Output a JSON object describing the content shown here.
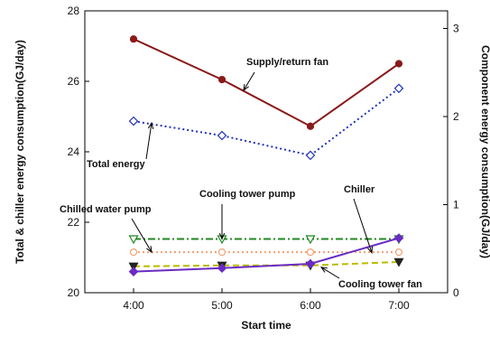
{
  "chart_data": {
    "type": "line",
    "categories": [
      "4:00",
      "5:00",
      "6:00",
      "7:00"
    ],
    "xlabel": "Start time",
    "ylabel_left": "Total & chiller energy consumption(GJ/day)",
    "ylabel_right": "Component energy consumption(GJ/day)",
    "ylim_left": [
      20,
      28
    ],
    "yticks_left": [
      20,
      22,
      24,
      26,
      28
    ],
    "ylim_right": [
      0,
      3.2
    ],
    "yticks_right": [
      0,
      1,
      2,
      3
    ],
    "grid": false,
    "series": [
      {
        "name": "Supply/return fan",
        "axis": "right",
        "color": "#8b1a1a",
        "dash": "none",
        "marker": "circle-filled",
        "values": [
          2.88,
          2.42,
          1.89,
          2.6
        ]
      },
      {
        "name": "Total energy",
        "axis": "left",
        "color": "#2233bb",
        "dash": "dot",
        "marker": "diamond-open",
        "values": [
          24.87,
          24.46,
          23.9,
          25.8
        ]
      },
      {
        "name": "Cooling tower pump",
        "axis": "right",
        "color": "#228822",
        "dash": "dashdot",
        "marker": "triangle-down-open",
        "values": [
          0.61,
          0.61,
          0.61,
          0.61
        ]
      },
      {
        "name": "Chilled water pump",
        "axis": "right",
        "color": "#f2a070",
        "dash": "dot",
        "marker": "circle-open",
        "values": [
          0.46,
          0.46,
          0.46,
          0.46
        ]
      },
      {
        "name": "Cooling tower fan",
        "axis": "right",
        "color": "#bbbb00",
        "dash": "dash",
        "marker": "triangle-down-filled",
        "values": [
          0.3,
          0.31,
          0.31,
          0.35
        ]
      },
      {
        "name": "Chiller",
        "axis": "left",
        "color": "#6a2bc4",
        "dash": "none",
        "marker": "diamond-filled",
        "values": [
          20.6,
          20.7,
          20.82,
          21.55
        ]
      }
    ],
    "annotations": [
      {
        "text": "Supply/return fan",
        "series": 0,
        "point": 1
      },
      {
        "text": "Total energy",
        "series": 1,
        "point": 0
      },
      {
        "text": "Cooling tower pump",
        "series": 2,
        "point": 1
      },
      {
        "text": "Chilled water pump",
        "series": 3,
        "point": 0
      },
      {
        "text": "Chiller",
        "series": 5,
        "point": 3
      },
      {
        "text": "Cooling tower fan",
        "series": 4,
        "point": 2
      }
    ]
  }
}
